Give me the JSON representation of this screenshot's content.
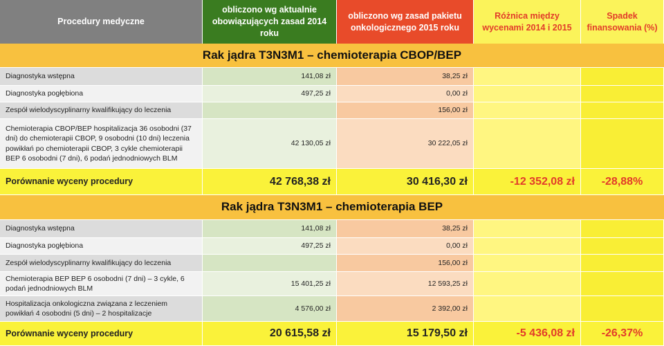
{
  "header": {
    "columns": [
      "Procedury medyczne",
      "obliczono wg aktualnie obowiązujących zasad 2014 roku",
      "obliczono wg zasad pakietu onkologicznego 2015 roku",
      "Różnica między wycenami 2014 i 2015",
      "Spadek finansowania (%)"
    ]
  },
  "sections": [
    {
      "title": "Rak jądra T3N3M1 – chemioterapia CBOP/BEP",
      "rows": [
        {
          "procedure": "Diagnostyka wstępna",
          "value_2014": "141,08 zł",
          "value_2015": "38,25 zł"
        },
        {
          "procedure": "Diagnostyka pogłębiona",
          "value_2014": "497,25 zł",
          "value_2015": "0,00 zł"
        },
        {
          "procedure": "Zespół wielodyscyplinarny kwalifikujący do leczenia",
          "value_2015": "156,00 zł"
        },
        {
          "procedure": "Chemioterapia CBOP/BEP hospitalizacja 36 osobodni (37 dni) do chemioterapii CBOP, 9 osobodni (10 dni) leczenia powikłań po chemioterapii CBOP, 3 cykle chemioterapii BEP 6 osobodni (7 dni), 6 podań jednodniowych BLM",
          "value_2014": "42 130,05 zł",
          "value_2015": "30 222,05 zł"
        }
      ],
      "summary": {
        "label": "Porównanie wyceny procedury",
        "value_2014": "42 768,38 zł",
        "value_2015": "30 416,30 zł",
        "difference": "-12 352,08 zł",
        "decline": "-28,88%"
      }
    },
    {
      "title": "Rak jądra T3N3M1 – chemioterapia BEP",
      "rows": [
        {
          "procedure": "Diagnostyka wstępna",
          "value_2014": "141,08 zł",
          "value_2015": "38,25 zł"
        },
        {
          "procedure": "Diagnostyka pogłębiona",
          "value_2014": "497,25 zł",
          "value_2015": "0,00 zł"
        },
        {
          "procedure": "Zespół wielodyscyplinarny kwalifikujący do leczenia",
          "value_2015": "156,00 zł"
        },
        {
          "procedure": "Chemioterapia BEP BEP 6 osobodni (7 dni) – 3 cykle, 6 podań jednodniowych BLM",
          "value_2014": "15 401,25 zł",
          "value_2015": "12 593,25 zł"
        },
        {
          "procedure": "Hospitalizacja onkologiczna związana z leczeniem powikłań 4 osobodni (5 dni) – 2 hospitalizacje",
          "value_2014": "4 576,00 zł",
          "value_2015": "2 392,00 zł"
        }
      ],
      "summary": {
        "label": "Porównanie wyceny procedury",
        "value_2014": "20 615,58 zł",
        "value_2015": "15 179,50 zł",
        "difference": "-5 436,08 zł",
        "decline": "-26,37%"
      }
    }
  ]
}
